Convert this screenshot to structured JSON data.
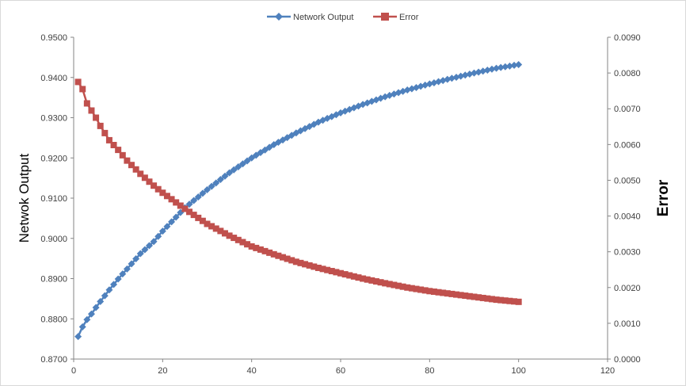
{
  "chart_data": {
    "type": "line",
    "legend_position": "top",
    "grid": false,
    "x": {
      "label": "",
      "range": [
        0,
        120
      ],
      "ticks": [
        "0",
        "20",
        "40",
        "60",
        "80",
        "100",
        "120"
      ]
    },
    "y_left": {
      "label": "Netwok Output",
      "range": [
        0.87,
        0.95
      ],
      "ticks": [
        "0.8700",
        "0.8800",
        "0.8900",
        "0.9000",
        "0.9100",
        "0.9200",
        "0.9300",
        "0.9400",
        "0.9500"
      ]
    },
    "y_right": {
      "label": "Error",
      "range": [
        0,
        0.009
      ],
      "ticks": [
        "0.0000",
        "0.0010",
        "0.0020",
        "0.0030",
        "0.0040",
        "0.0050",
        "0.0060",
        "0.0070",
        "0.0080",
        "0.0090"
      ]
    },
    "series": [
      {
        "name": "Network Output",
        "axis": "left",
        "color": "#4f81bd",
        "marker": "diamond",
        "x": [
          1,
          2,
          3,
          4,
          5,
          6,
          8,
          10,
          12,
          15,
          18,
          20,
          25,
          30,
          35,
          40,
          45,
          50,
          55,
          60,
          65,
          70,
          75,
          80,
          85,
          90,
          95,
          100
        ],
        "y": [
          0.8756,
          0.878,
          0.8798,
          0.8812,
          0.8828,
          0.8843,
          0.8872,
          0.8899,
          0.8924,
          0.8962,
          0.8992,
          0.9018,
          0.9076,
          0.9121,
          0.9163,
          0.92,
          0.9233,
          0.9262,
          0.9289,
          0.9312,
          0.9333,
          0.9352,
          0.9369,
          0.9384,
          0.9398,
          0.9411,
          0.9423,
          0.9432
        ]
      },
      {
        "name": "Error",
        "axis": "right",
        "color": "#c0504d",
        "marker": "square",
        "x": [
          1,
          2,
          3,
          4,
          5,
          6,
          8,
          10,
          12,
          15,
          18,
          20,
          25,
          30,
          35,
          40,
          45,
          50,
          55,
          60,
          65,
          70,
          75,
          80,
          85,
          90,
          95,
          100
        ],
        "y": [
          0.00775,
          0.00755,
          0.00715,
          0.00695,
          0.00675,
          0.00652,
          0.00612,
          0.00585,
          0.00555,
          0.00518,
          0.00485,
          0.00465,
          0.0042,
          0.00378,
          0.00345,
          0.00315,
          0.00293,
          0.00272,
          0.00255,
          0.0024,
          0.00225,
          0.00212,
          0.002,
          0.0019,
          0.00182,
          0.00174,
          0.00166,
          0.0016
        ]
      }
    ]
  }
}
